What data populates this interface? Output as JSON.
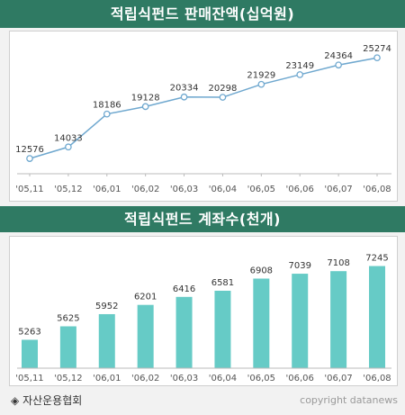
{
  "chart_data": [
    {
      "type": "line",
      "title": "적립식펀드 판매잔액(십억원)",
      "categories": [
        "'05,11",
        "'05,12",
        "'06,01",
        "'06,02",
        "'06,03",
        "'06,04",
        "'06,05",
        "'06,06",
        "'06,07",
        "'06,08"
      ],
      "series": [
        {
          "values": [
            12576,
            14033,
            18186,
            19128,
            20334,
            20298,
            21929,
            23149,
            24364,
            25274
          ]
        }
      ],
      "data_labels": [
        "12576",
        "14033",
        "18186",
        "19128",
        "20334",
        "20298",
        "21929",
        "23149",
        "24364",
        "25274"
      ],
      "ylim": [
        11000,
        27000
      ],
      "grid": false,
      "colors": {
        "line": "#6fa8cf",
        "marker_fill": "#ffffff"
      }
    },
    {
      "type": "bar",
      "title": "적립식펀드 계좌수(천개)",
      "categories": [
        "'05,11",
        "'05,12",
        "'06,01",
        "'06,02",
        "'06,03",
        "'06,04",
        "'06,05",
        "'06,06",
        "'06,07",
        "'06,08"
      ],
      "series": [
        {
          "values": [
            5263,
            5625,
            5952,
            6201,
            6416,
            6581,
            6908,
            7039,
            7108,
            7245
          ]
        }
      ],
      "data_labels": [
        "5263",
        "5625",
        "5952",
        "6201",
        "6416",
        "6581",
        "6908",
        "7039",
        "7108",
        "7245"
      ],
      "ylim": [
        4500,
        7500
      ],
      "grid": false,
      "colors": {
        "bar": "#66cbc6"
      }
    }
  ],
  "footer": {
    "source_icon": "diamond-bullet-icon",
    "source_marker": "◈",
    "source": "자산운용협회",
    "copyright": "copyright datanews"
  },
  "colors": {
    "banner_bg": "#2f7a63",
    "banner_text": "#ffffff",
    "page_bg": "#f2f2f2"
  }
}
